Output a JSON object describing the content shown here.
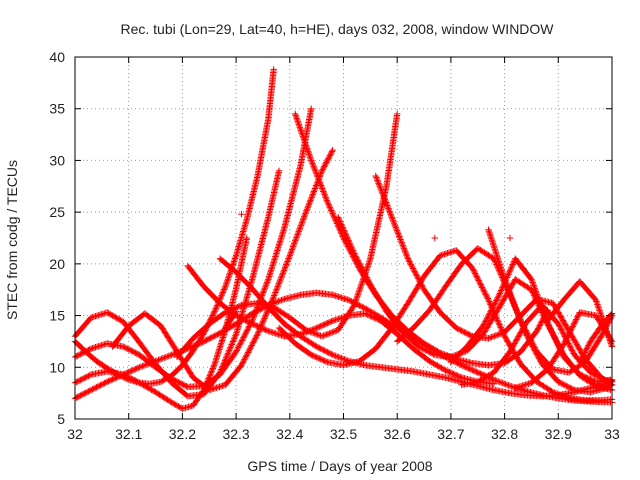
{
  "chart_data": {
    "type": "scatter",
    "title": "Rec. tubi (Lon=29, Lat=40, h=HE), days 032, 2008, window WINDOW",
    "xlabel": "GPS time / Days of year 2008",
    "ylabel": "STEC from codg / TECUs",
    "xlim": [
      32,
      33
    ],
    "ylim": [
      5,
      40
    ],
    "xticks": [
      "32",
      "32.1",
      "32.2",
      "32.3",
      "32.4",
      "32.5",
      "32.6",
      "32.7",
      "32.8",
      "32.9",
      "33"
    ],
    "yticks": [
      "5",
      "10",
      "15",
      "20",
      "25",
      "30",
      "35",
      "40"
    ],
    "grid": true,
    "marker": "+",
    "marker_color": "#ff0000",
    "series": [
      {
        "x": [
          32.0,
          32.03,
          32.06,
          32.09,
          32.12,
          32.15,
          32.18,
          32.21,
          32.24,
          32.27,
          32.3,
          32.33,
          32.36,
          32.39,
          32.42,
          32.45,
          32.48,
          32.51,
          32.54,
          32.57,
          32.6,
          32.63,
          32.66,
          32.69,
          32.72,
          32.75,
          32.78,
          32.81,
          32.84,
          32.87,
          32.9,
          32.93,
          32.96,
          33.0
        ],
        "y": [
          7.0,
          7.8,
          8.6,
          9.3,
          10.0,
          10.6,
          11.2,
          11.8,
          12.5,
          13.3,
          14.2,
          15.2,
          16.0,
          16.6,
          17.0,
          17.2,
          17.0,
          16.5,
          15.7,
          14.8,
          13.8,
          12.8,
          11.9,
          11.0,
          10.2,
          9.5,
          8.8,
          8.2,
          7.7,
          7.3,
          7.0,
          6.8,
          6.7,
          6.6
        ]
      },
      {
        "x": [
          32.0,
          32.02,
          32.04,
          32.06,
          32.08,
          32.1,
          32.12,
          32.14,
          32.16,
          32.18,
          32.2,
          32.22,
          32.24,
          32.26,
          32.28,
          32.3,
          32.32,
          32.34,
          32.36,
          32.37
        ],
        "y": [
          12.5,
          11.5,
          10.6,
          9.9,
          9.3,
          8.8,
          8.5,
          8.4,
          8.6,
          9.2,
          10.2,
          11.6,
          13.3,
          15.4,
          17.8,
          20.8,
          24.3,
          28.5,
          34.0,
          38.8
        ]
      },
      {
        "x": [
          32.27,
          32.3,
          32.33,
          32.36,
          32.39,
          32.42,
          32.45,
          32.48,
          32.51,
          32.54,
          32.57,
          32.6,
          32.63,
          32.66,
          32.69,
          32.72,
          32.75,
          32.78,
          32.81,
          32.84,
          32.87,
          32.9,
          32.93,
          32.96,
          33.0
        ],
        "y": [
          20.5,
          19.2,
          17.6,
          15.8,
          14.2,
          13.0,
          12.0,
          11.2,
          10.6,
          10.2,
          10.0,
          9.8,
          9.6,
          9.3,
          9.0,
          8.6,
          8.2,
          7.8,
          7.5,
          7.3,
          7.2,
          7.3,
          7.6,
          8.0,
          8.6
        ]
      },
      {
        "x": [
          32.0,
          32.03,
          32.06,
          32.09,
          32.12,
          32.15,
          32.18,
          32.21,
          32.24,
          32.27,
          32.3,
          32.33,
          32.36,
          32.39,
          32.42,
          32.44
        ],
        "y": [
          11.0,
          11.8,
          12.3,
          12.0,
          11.2,
          10.0,
          8.9,
          8.1,
          8.2,
          9.3,
          11.5,
          14.5,
          18.5,
          23.5,
          29.5,
          35.0
        ]
      },
      {
        "x": [
          32.41,
          32.44,
          32.47,
          32.5,
          32.53,
          32.56,
          32.59,
          32.62,
          32.65,
          32.68,
          32.71,
          32.74,
          32.77,
          32.8,
          32.83,
          32.86,
          32.88
        ],
        "y": [
          34.5,
          30.0,
          26.0,
          22.5,
          19.5,
          17.0,
          15.0,
          13.5,
          12.3,
          11.4,
          10.8,
          10.4,
          10.2,
          10.4,
          11.5,
          13.5,
          15.5
        ]
      },
      {
        "x": [
          32.0,
          32.03,
          32.06,
          32.09,
          32.12,
          32.15,
          32.18,
          32.21,
          32.24,
          32.27,
          32.3,
          32.33,
          32.36,
          32.38
        ],
        "y": [
          13.0,
          14.8,
          15.3,
          14.4,
          12.4,
          10.3,
          8.5,
          7.2,
          7.4,
          9.5,
          13.2,
          18.5,
          24.5,
          29.0
        ]
      },
      {
        "x": [
          32.07,
          32.1,
          32.13,
          32.16,
          32.19,
          32.22,
          32.25,
          32.28,
          32.31,
          32.34,
          32.37,
          32.4,
          32.43,
          32.46,
          32.48
        ],
        "y": [
          12.0,
          14.0,
          15.2,
          14.0,
          11.5,
          9.0,
          7.8,
          8.3,
          10.2,
          13.2,
          16.8,
          20.8,
          25.0,
          29.0,
          31.0
        ]
      },
      {
        "x": [
          32.0,
          32.03,
          32.06,
          32.09,
          32.12,
          32.15,
          32.18,
          32.2,
          32.22,
          32.24,
          32.26,
          32.28,
          32.3,
          32.32
        ],
        "y": [
          8.5,
          9.3,
          9.6,
          9.3,
          8.5,
          7.6,
          6.6,
          6.0,
          6.3,
          7.8,
          10.3,
          13.6,
          17.6,
          22.5
        ]
      },
      {
        "x": [
          32.19,
          32.22,
          32.25,
          32.28,
          32.31,
          32.34,
          32.37,
          32.4,
          32.43,
          32.46,
          32.49,
          32.52,
          32.55,
          32.58,
          32.6
        ],
        "y": [
          11.0,
          12.8,
          14.2,
          15.3,
          16.0,
          16.2,
          15.8,
          14.8,
          13.6,
          13.0,
          13.6,
          16.0,
          20.5,
          27.5,
          34.5
        ]
      },
      {
        "x": [
          32.21,
          32.24,
          32.27,
          32.3,
          32.33,
          32.36,
          32.39,
          32.42,
          32.45,
          32.48,
          32.51,
          32.54,
          32.57,
          32.6,
          32.63,
          32.66,
          32.69,
          32.72,
          32.75,
          32.78
        ],
        "y": [
          19.8,
          17.8,
          16.2,
          15.0,
          14.2,
          13.5,
          13.0,
          13.2,
          13.8,
          14.5,
          15.0,
          15.2,
          14.5,
          13.2,
          11.8,
          10.6,
          9.7,
          9.0,
          8.6,
          8.4
        ]
      },
      {
        "x": [
          32.38,
          32.41,
          32.44,
          32.47,
          32.5,
          32.53,
          32.56,
          32.59,
          32.62,
          32.65,
          32.68,
          32.71,
          32.74,
          32.77,
          32.8,
          32.83,
          32.86,
          32.89,
          32.92,
          32.95,
          32.98,
          33.0
        ],
        "y": [
          13.8,
          12.3,
          11.2,
          10.5,
          10.2,
          10.6,
          11.8,
          13.8,
          16.2,
          18.8,
          20.8,
          21.3,
          19.6,
          16.5,
          13.0,
          10.3,
          8.6,
          7.6,
          7.0,
          6.8,
          6.8,
          6.9
        ]
      },
      {
        "x": [
          32.49,
          32.52,
          32.55,
          32.58,
          32.61,
          32.64,
          32.67,
          32.7,
          32.73,
          32.76,
          32.79,
          32.82,
          32.85,
          32.88,
          32.91,
          32.94,
          32.97,
          33.0
        ],
        "y": [
          24.5,
          21.0,
          18.0,
          15.4,
          13.4,
          12.0,
          11.2,
          11.0,
          11.6,
          13.2,
          15.8,
          18.5,
          17.5,
          14.2,
          11.2,
          9.2,
          8.2,
          7.8
        ]
      },
      {
        "x": [
          32.56,
          32.59,
          32.62,
          32.65,
          32.68,
          32.71,
          32.74,
          32.77,
          32.8,
          32.83,
          32.86,
          32.89,
          32.92,
          32.95,
          32.98,
          33.0
        ],
        "y": [
          28.5,
          24.5,
          20.5,
          17.5,
          15.3,
          13.8,
          13.0,
          12.8,
          13.4,
          15.0,
          16.6,
          16.2,
          13.5,
          10.8,
          9.0,
          8.3
        ]
      },
      {
        "x": [
          32.6,
          32.63,
          32.66,
          32.69,
          32.72,
          32.75,
          32.78,
          32.81,
          32.84,
          32.87,
          32.9,
          32.93,
          32.96,
          32.99,
          33.0
        ],
        "y": [
          12.5,
          13.8,
          15.5,
          17.8,
          20.0,
          21.5,
          20.5,
          17.0,
          13.2,
          10.3,
          8.6,
          7.8,
          7.6,
          8.0,
          8.3
        ]
      },
      {
        "x": [
          32.7,
          32.73,
          32.76,
          32.79,
          32.82,
          32.85,
          32.88,
          32.91,
          32.94,
          32.97,
          33.0
        ],
        "y": [
          10.5,
          12.0,
          14.0,
          17.0,
          20.5,
          18.5,
          14.3,
          11.0,
          9.3,
          8.6,
          8.8
        ]
      },
      {
        "x": [
          32.72,
          32.75,
          32.78,
          32.81,
          32.84,
          32.87,
          32.9,
          32.93,
          32.96,
          32.99,
          33.0
        ],
        "y": [
          8.3,
          8.6,
          9.5,
          11.5,
          14.3,
          16.0,
          14.2,
          11.2,
          9.5,
          8.7,
          8.7
        ]
      },
      {
        "x": [
          32.77,
          32.8,
          32.83,
          32.86,
          32.89,
          32.92,
          32.95,
          32.98,
          33.0
        ],
        "y": [
          23.3,
          18.5,
          14.5,
          11.5,
          9.8,
          9.5,
          10.5,
          13.0,
          15.0
        ]
      },
      {
        "x": [
          32.82,
          32.85,
          32.88,
          32.91,
          32.94,
          32.97,
          33.0
        ],
        "y": [
          8.0,
          8.5,
          9.8,
          12.2,
          15.3,
          15.0,
          12.5
        ]
      },
      {
        "x": [
          32.88,
          32.91,
          32.94,
          32.97,
          33.0
        ],
        "y": [
          14.5,
          16.5,
          18.3,
          16.5,
          12.0
        ]
      },
      {
        "x": [
          32.94,
          32.96,
          32.98,
          33.0
        ],
        "y": [
          10.5,
          12.5,
          14.0,
          15.2
        ]
      },
      {
        "x": [
          32.28,
          32.29,
          32.3
        ],
        "y": [
          13.8,
          14.6,
          15.4
        ]
      }
    ],
    "outliers": {
      "x": [
        32.31,
        32.67,
        32.835,
        32.81
      ],
      "y": [
        24.8,
        22.5,
        19.5,
        22.5
      ]
    }
  }
}
